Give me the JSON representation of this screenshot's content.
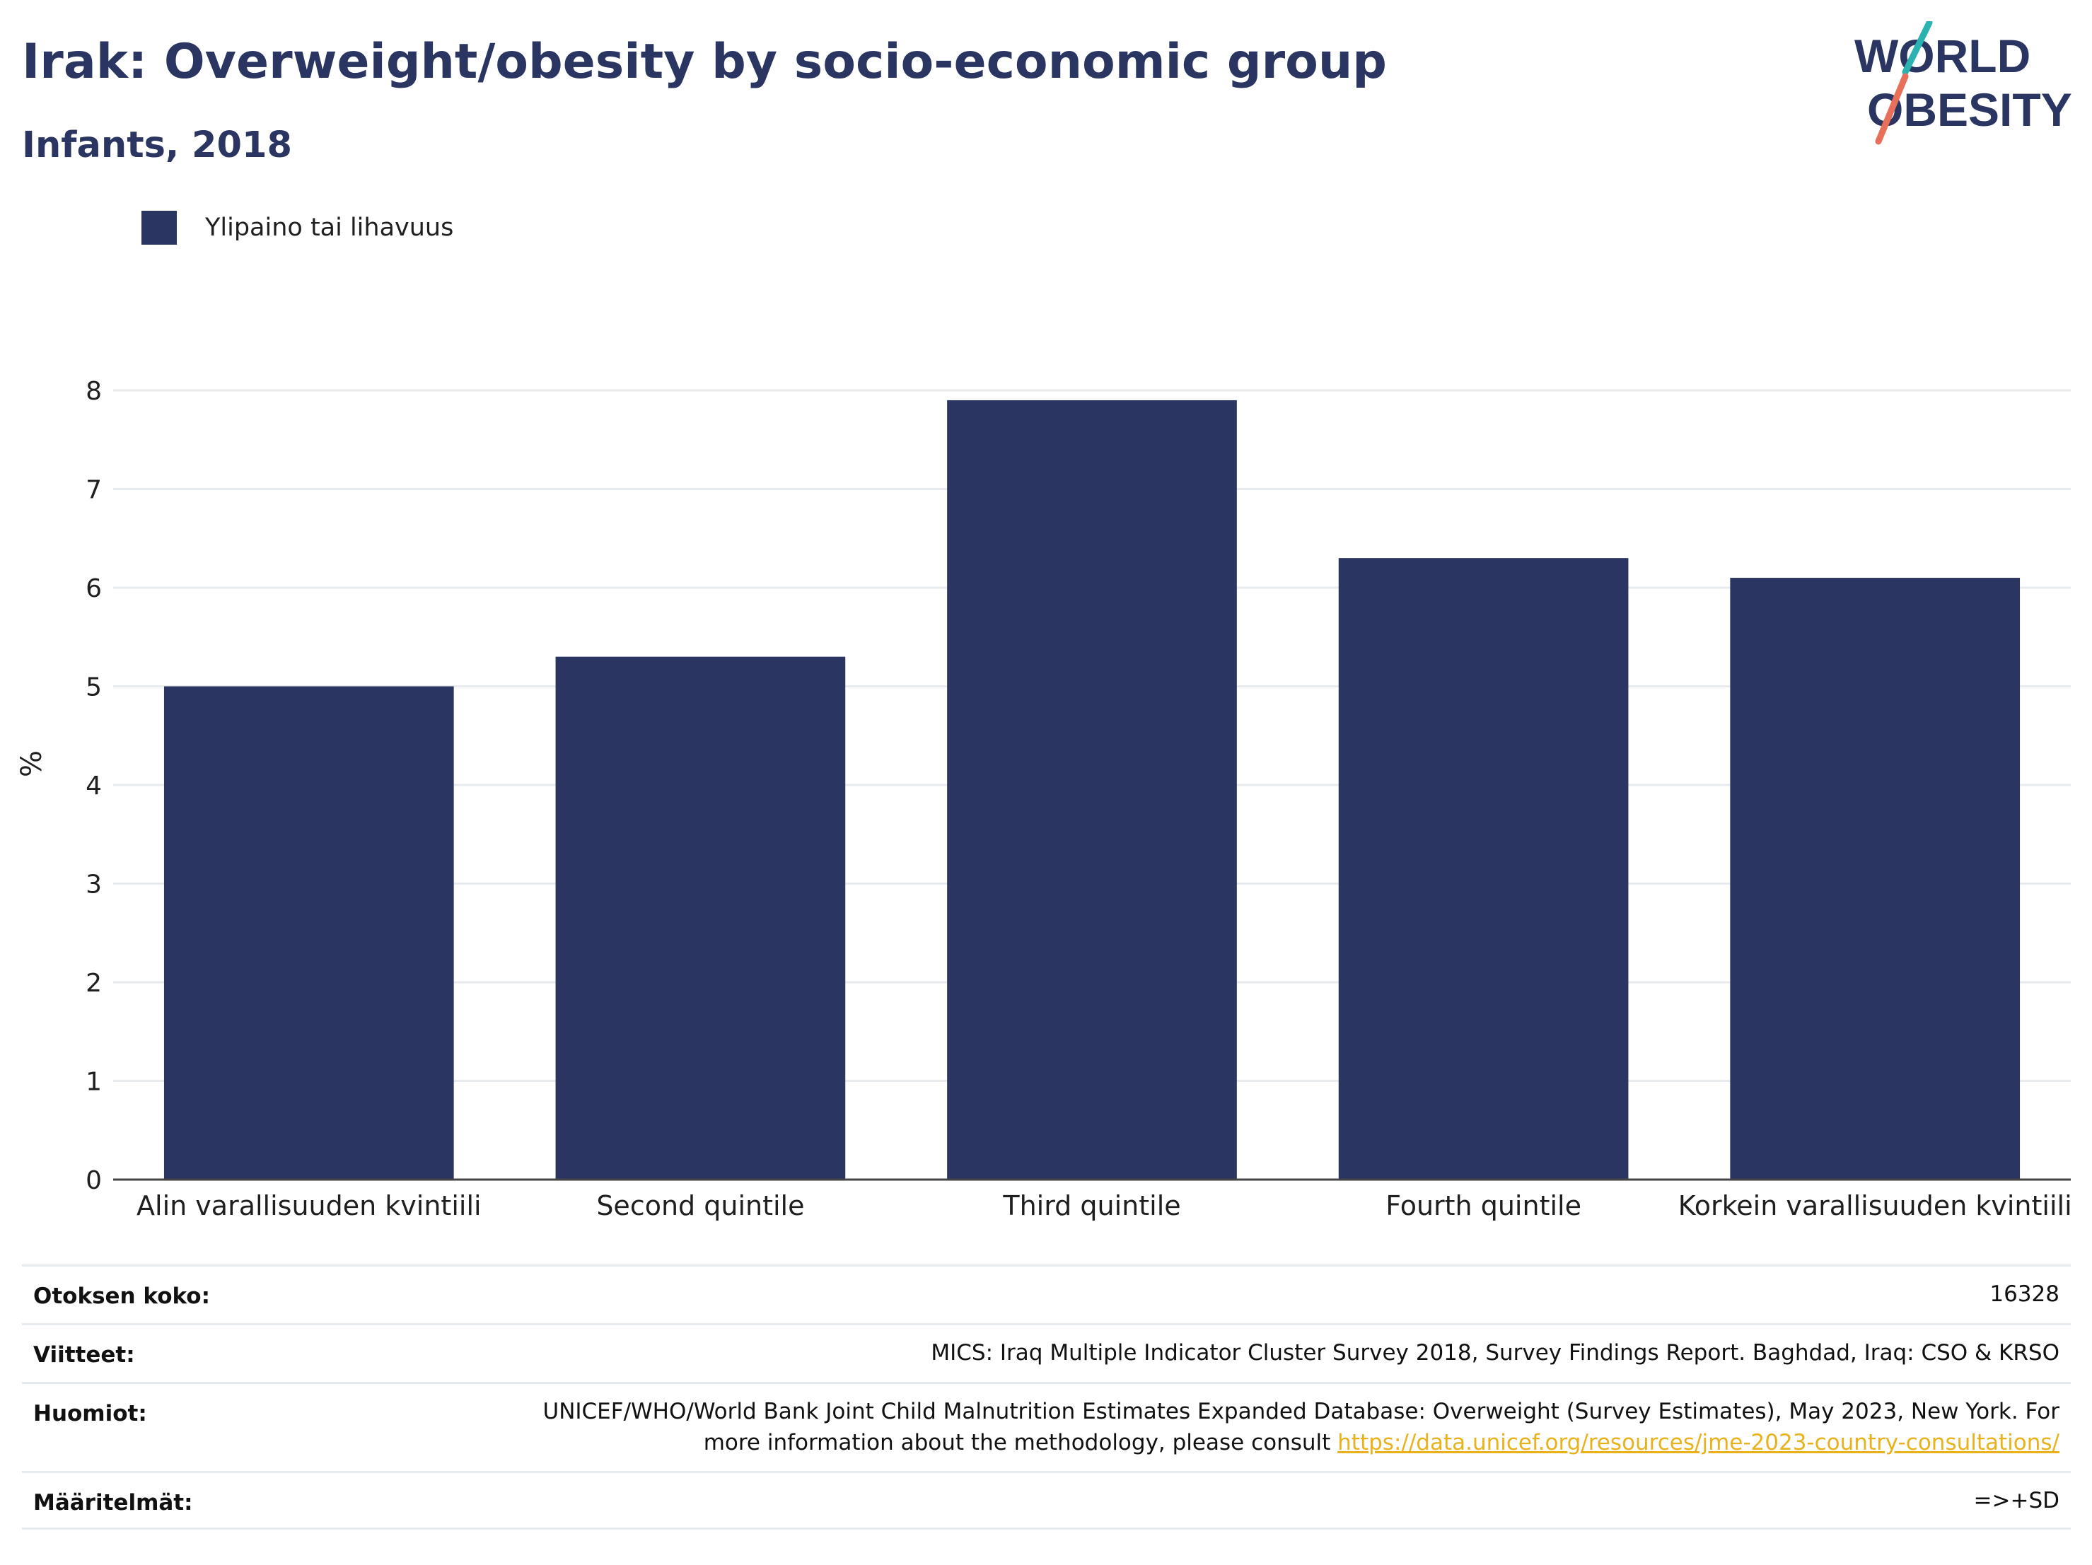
{
  "header": {
    "title": "Irak: Overweight/obesity by socio-economic group",
    "subtitle": "Infants, 2018"
  },
  "logo": {
    "line1": "WORLD",
    "line2": "OBESITY",
    "colors": {
      "text": "#2b3561",
      "accent_teal": "#2bb3b1",
      "accent_coral": "#e8705a"
    }
  },
  "legend": {
    "label": "Ylipaino tai lihavuus",
    "color": "#2b3561"
  },
  "chart_data": {
    "type": "bar",
    "categories": [
      "Alin varallisuuden kvintiili",
      "Second quintile",
      "Third quintile",
      "Fourth quintile",
      "Korkein varallisuuden kvintiili"
    ],
    "series": [
      {
        "name": "Ylipaino tai lihavuus",
        "values": [
          5.0,
          5.3,
          7.9,
          6.3,
          6.1
        ],
        "color": "#2b3561"
      }
    ],
    "ylabel": "%",
    "xlabel": "",
    "ylim": [
      0,
      8
    ],
    "yticks": [
      "0",
      "1",
      "2",
      "3",
      "4",
      "5",
      "6",
      "7",
      "8"
    ],
    "grid": true,
    "legend_position": "top-left"
  },
  "table": {
    "rows": [
      {
        "label": "Otoksen koko:",
        "value": "16328"
      },
      {
        "label": "Viitteet:",
        "value": "MICS: Iraq Multiple Indicator Cluster Survey 2018, Survey Findings Report. Baghdad, Iraq: CSO & KRSO"
      },
      {
        "label": "Huomiot:",
        "value": "UNICEF/WHO/World Bank Joint Child Malnutrition Estimates Expanded Database: Overweight (Survey Estimates), May 2023, New York. For more information about the methodology, please consult ",
        "link": "https://data.unicef.org/resources/jme-2023-country-consultations/"
      },
      {
        "label": "Määritelmät:",
        "value": "=>+SD"
      }
    ]
  }
}
